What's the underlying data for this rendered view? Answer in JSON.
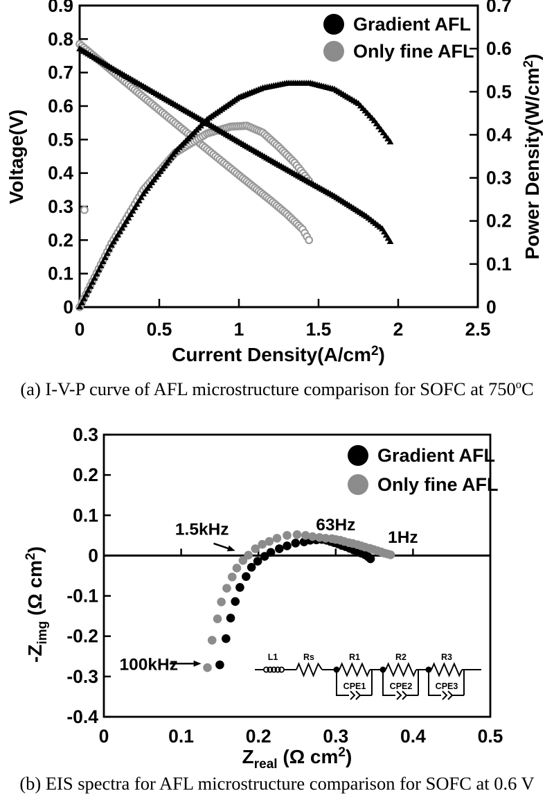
{
  "colors": {
    "black": "#000000",
    "gray_fill": "#8c8c8c",
    "gray_ring": "#9a9a9a",
    "background": "#ffffff"
  },
  "caption_a": {
    "pre": "(a) I-V-P curve of AFL microstructure comparison for SOFC at 750",
    "sup": "o",
    "post": "C"
  },
  "caption_b": {
    "text": "(b) EIS spectra for AFL microstructure comparison for SOFC at 0.6 V"
  },
  "chart_data": [
    {
      "type": "scatter",
      "title": "",
      "xlabel": {
        "pre": "Current Density(A/cm",
        "sup": "2",
        "post": ")"
      },
      "ylabel_left": "Voltage(V)",
      "ylabel_right": {
        "pre": "Power Density(W/cm",
        "sup": "2",
        "post": ")"
      },
      "xlim": [
        0,
        2.5
      ],
      "ylim_left": [
        0,
        0.9
      ],
      "ylim_right": [
        0,
        0.7
      ],
      "xticks": [
        0,
        0.5,
        1,
        1.5,
        2,
        2.5
      ],
      "xtick_labels": [
        "0",
        "0.5",
        "1",
        "1.5",
        "2",
        "2.5"
      ],
      "yticks_left": [
        0,
        0.1,
        0.2,
        0.3,
        0.4,
        0.5,
        0.6,
        0.7,
        0.8,
        0.9
      ],
      "ytick_left_labels": [
        "0",
        "0.1",
        "0.2",
        "0.3",
        "0.4",
        "0.5",
        "0.6",
        "0.7",
        "0.8",
        "0.9"
      ],
      "yticks_right": [
        0,
        0.1,
        0.2,
        0.3,
        0.4,
        0.5,
        0.6,
        0.7
      ],
      "ytick_right_labels": [
        "0",
        "0.1",
        "0.2",
        "0.3",
        "0.4",
        "0.5",
        "0.6",
        "0.7"
      ],
      "grid": false,
      "legend_position": "upper right inside",
      "legend": [
        {
          "label": "Gradient AFL",
          "color": "#000000"
        },
        {
          "label": "Only fine AFL",
          "color": "#8c8c8c"
        }
      ],
      "series": [
        {
          "name": "Only fine AFL stray point",
          "axis": "left",
          "marker": "open-circle",
          "color": "#9a9a9a",
          "step": 1,
          "points": [
            [
              0.03,
              0.29
            ]
          ]
        },
        {
          "name": "Only fine AFL voltage",
          "axis": "left",
          "marker": "open-circle",
          "color": "#9a9a9a",
          "step": 0.013,
          "points": [
            [
              0,
              0.785
            ],
            [
              0.2,
              0.706
            ],
            [
              0.4,
              0.627
            ],
            [
              0.6,
              0.549
            ],
            [
              0.8,
              0.471
            ],
            [
              1.0,
              0.394
            ],
            [
              1.1,
              0.356
            ],
            [
              1.2,
              0.318
            ],
            [
              1.3,
              0.278
            ],
            [
              1.4,
              0.232
            ],
            [
              1.44,
              0.2
            ]
          ]
        },
        {
          "name": "Only fine AFL power",
          "axis": "right",
          "marker": "open-circle",
          "color": "#9a9a9a",
          "step": 0.013,
          "points": [
            [
              0,
              0
            ],
            [
              0.2,
              0.148
            ],
            [
              0.4,
              0.272
            ],
            [
              0.6,
              0.358
            ],
            [
              0.8,
              0.403
            ],
            [
              0.95,
              0.419
            ],
            [
              1.05,
              0.421
            ],
            [
              1.15,
              0.405
            ],
            [
              1.25,
              0.372
            ],
            [
              1.35,
              0.335
            ],
            [
              1.44,
              0.293
            ]
          ]
        },
        {
          "name": "Gradient AFL voltage",
          "axis": "left",
          "marker": "triangle",
          "color": "#000000",
          "step": 0.0135,
          "points": [
            [
              0,
              0.77
            ],
            [
              0.2,
              0.713
            ],
            [
              0.4,
              0.658
            ],
            [
              0.6,
              0.603
            ],
            [
              0.8,
              0.548
            ],
            [
              1.0,
              0.492
            ],
            [
              1.2,
              0.437
            ],
            [
              1.4,
              0.383
            ],
            [
              1.6,
              0.33
            ],
            [
              1.8,
              0.27
            ],
            [
              1.9,
              0.233
            ],
            [
              1.95,
              0.195
            ]
          ]
        },
        {
          "name": "Gradient AFL power",
          "axis": "right",
          "marker": "triangle",
          "color": "#000000",
          "step": 0.0135,
          "points": [
            [
              0,
              0
            ],
            [
              0.2,
              0.143
            ],
            [
              0.4,
              0.262
            ],
            [
              0.6,
              0.36
            ],
            [
              0.8,
              0.435
            ],
            [
              1.0,
              0.486
            ],
            [
              1.15,
              0.508
            ],
            [
              1.3,
              0.519
            ],
            [
              1.45,
              0.519
            ],
            [
              1.6,
              0.505
            ],
            [
              1.75,
              0.472
            ],
            [
              1.85,
              0.432
            ],
            [
              1.95,
              0.383
            ]
          ]
        }
      ]
    },
    {
      "type": "scatter",
      "title": "",
      "xlabel": {
        "main": "Z",
        "sub": "real",
        "mid": " (Ω cm",
        "sup": "2",
        "post": ")"
      },
      "ylabel": {
        "main": "-Z",
        "sub": "img",
        "mid": " (Ω cm",
        "sup": "2",
        "post": ")"
      },
      "xlim": [
        0,
        0.5
      ],
      "ylim": [
        -0.4,
        0.3
      ],
      "xticks": [
        0,
        0.1,
        0.2,
        0.3,
        0.4,
        0.5
      ],
      "xtick_labels": [
        "0",
        "0.1",
        "0.2",
        "0.3",
        "0.4",
        "0.5"
      ],
      "yticks": [
        0.3,
        0.2,
        0.1,
        0,
        -0.1,
        -0.2,
        -0.3,
        -0.4
      ],
      "ytick_labels": [
        "0.3",
        "0.2",
        "0.1",
        "0",
        "-0.1",
        "-0.2",
        "-0.3",
        "-0.4"
      ],
      "grid": false,
      "legend_position": "upper right inside",
      "legend": [
        {
          "label": "Gradient AFL",
          "color": "#000000"
        },
        {
          "label": "Only fine AFL",
          "color": "#8c8c8c"
        }
      ],
      "series": [
        {
          "name": "Gradient AFL EIS",
          "marker": "dot",
          "color": "#000000",
          "points": [
            [
              0.15,
              -0.271
            ],
            [
              0.158,
              -0.206
            ],
            [
              0.164,
              -0.155
            ],
            [
              0.17,
              -0.114
            ],
            [
              0.176,
              -0.079
            ],
            [
              0.184,
              -0.052
            ],
            [
              0.191,
              -0.029
            ],
            [
              0.199,
              -0.014
            ],
            [
              0.208,
              -0.002
            ],
            [
              0.216,
              0.008
            ],
            [
              0.227,
              0.017
            ],
            [
              0.237,
              0.024
            ],
            [
              0.248,
              0.031
            ],
            [
              0.259,
              0.034
            ],
            [
              0.267,
              0.038
            ],
            [
              0.275,
              0.039
            ],
            [
              0.282,
              0.04
            ],
            [
              0.288,
              0.038
            ],
            [
              0.293,
              0.035
            ],
            [
              0.298,
              0.032
            ],
            [
              0.303,
              0.029
            ],
            [
              0.308,
              0.025
            ],
            [
              0.313,
              0.022
            ],
            [
              0.318,
              0.018
            ],
            [
              0.323,
              0.014
            ],
            [
              0.328,
              0.01
            ],
            [
              0.333,
              0.006
            ],
            [
              0.338,
              0.002
            ],
            [
              0.342,
              -0.003
            ],
            [
              0.345,
              -0.008
            ]
          ]
        },
        {
          "name": "Only fine AFL EIS",
          "marker": "dot",
          "color": "#8c8c8c",
          "points": [
            [
              0.134,
              -0.278
            ],
            [
              0.14,
              -0.21
            ],
            [
              0.147,
              -0.157
            ],
            [
              0.152,
              -0.115
            ],
            [
              0.159,
              -0.081
            ],
            [
              0.166,
              -0.053
            ],
            [
              0.172,
              -0.031
            ],
            [
              0.18,
              -0.012
            ],
            [
              0.187,
              0.001
            ],
            [
              0.196,
              0.017
            ],
            [
              0.205,
              0.028
            ],
            [
              0.214,
              0.035
            ],
            [
              0.224,
              0.043
            ],
            [
              0.237,
              0.05
            ],
            [
              0.25,
              0.052
            ],
            [
              0.261,
              0.05
            ],
            [
              0.27,
              0.047
            ],
            [
              0.279,
              0.045
            ],
            [
              0.287,
              0.043
            ],
            [
              0.295,
              0.042
            ],
            [
              0.3,
              0.04
            ],
            [
              0.306,
              0.038
            ],
            [
              0.311,
              0.035
            ],
            [
              0.317,
              0.032
            ],
            [
              0.322,
              0.03
            ],
            [
              0.328,
              0.027
            ],
            [
              0.333,
              0.024
            ],
            [
              0.338,
              0.021
            ],
            [
              0.344,
              0.018
            ],
            [
              0.349,
              0.015
            ],
            [
              0.354,
              0.012
            ],
            [
              0.359,
              0.009
            ],
            [
              0.363,
              0.006
            ],
            [
              0.367,
              0.004
            ],
            [
              0.371,
              0.002
            ]
          ]
        }
      ],
      "annotations": [
        {
          "text": "1.5kHz",
          "x": 0.127,
          "y": 0.067,
          "arrow": {
            "x1": 0.142,
            "y1": 0.03,
            "x2": 0.17,
            "y2": 0.012
          }
        },
        {
          "text": "63Hz",
          "x": 0.3,
          "y": 0.078
        },
        {
          "text": "1Hz",
          "x": 0.387,
          "y": 0.047
        },
        {
          "text": "100kHz",
          "x": 0.058,
          "y": -0.268,
          "arrow": {
            "x1": 0.085,
            "y1": -0.268,
            "x2": 0.126,
            "y2": -0.268
          }
        }
      ],
      "circuit": {
        "inductor": "L1",
        "series_resistor": "Rs",
        "r1": "R1",
        "r2": "R2",
        "r3": "R3",
        "cpe1": "CPE1",
        "cpe2": "CPE2",
        "cpe3": "CPE3"
      }
    }
  ]
}
